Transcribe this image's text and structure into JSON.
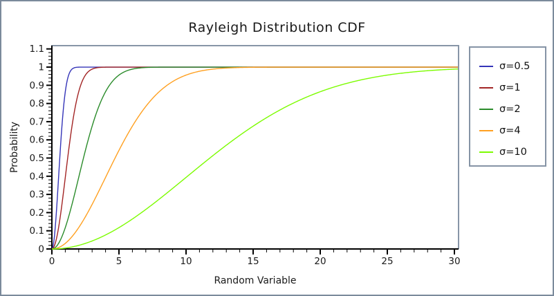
{
  "window": {
    "background": "#ffffff",
    "outer_border_color": "#7b8a9b"
  },
  "chart_data": {
    "type": "line",
    "title": "Rayleigh Distribution CDF",
    "xlabel": "Random Variable",
    "ylabel": "Probability",
    "formula": "F(x) = 1 - exp(-x²/(2σ²))",
    "x_range": [
      0,
      30.3
    ],
    "y_range": [
      0,
      1.118
    ],
    "x_ticks": [
      0,
      5,
      10,
      15,
      20,
      25,
      30
    ],
    "x_tick_labels": [
      "0",
      "5",
      "10",
      "15",
      "20",
      "25",
      "30"
    ],
    "x_minor_tick_step": 1,
    "y_ticks": [
      0,
      0.1,
      0.2,
      0.3,
      0.4,
      0.5,
      0.6,
      0.7,
      0.8,
      0.9,
      1.0,
      1.1
    ],
    "y_tick_labels": [
      "0",
      "0.1",
      "0.2",
      "0.3",
      "0.4",
      "0.5",
      "0.6",
      "0.7",
      "0.8",
      "0.9",
      "1",
      "1.1"
    ],
    "y_minor_tick_step": 0.02,
    "grid": false,
    "legend_position": "right-outside",
    "axis_color": "#000000",
    "frame_color": "#8795a7",
    "series": [
      {
        "label": "σ=0.5",
        "sigma": 0.5,
        "color": "#3434b8"
      },
      {
        "label": "σ=1",
        "sigma": 1,
        "color": "#a22424"
      },
      {
        "label": "σ=2",
        "sigma": 2,
        "color": "#2a8b2a"
      },
      {
        "label": "σ=4",
        "sigma": 4,
        "color": "#ffa020"
      },
      {
        "label": "σ=10",
        "sigma": 10,
        "color": "#7cfc00"
      }
    ]
  }
}
